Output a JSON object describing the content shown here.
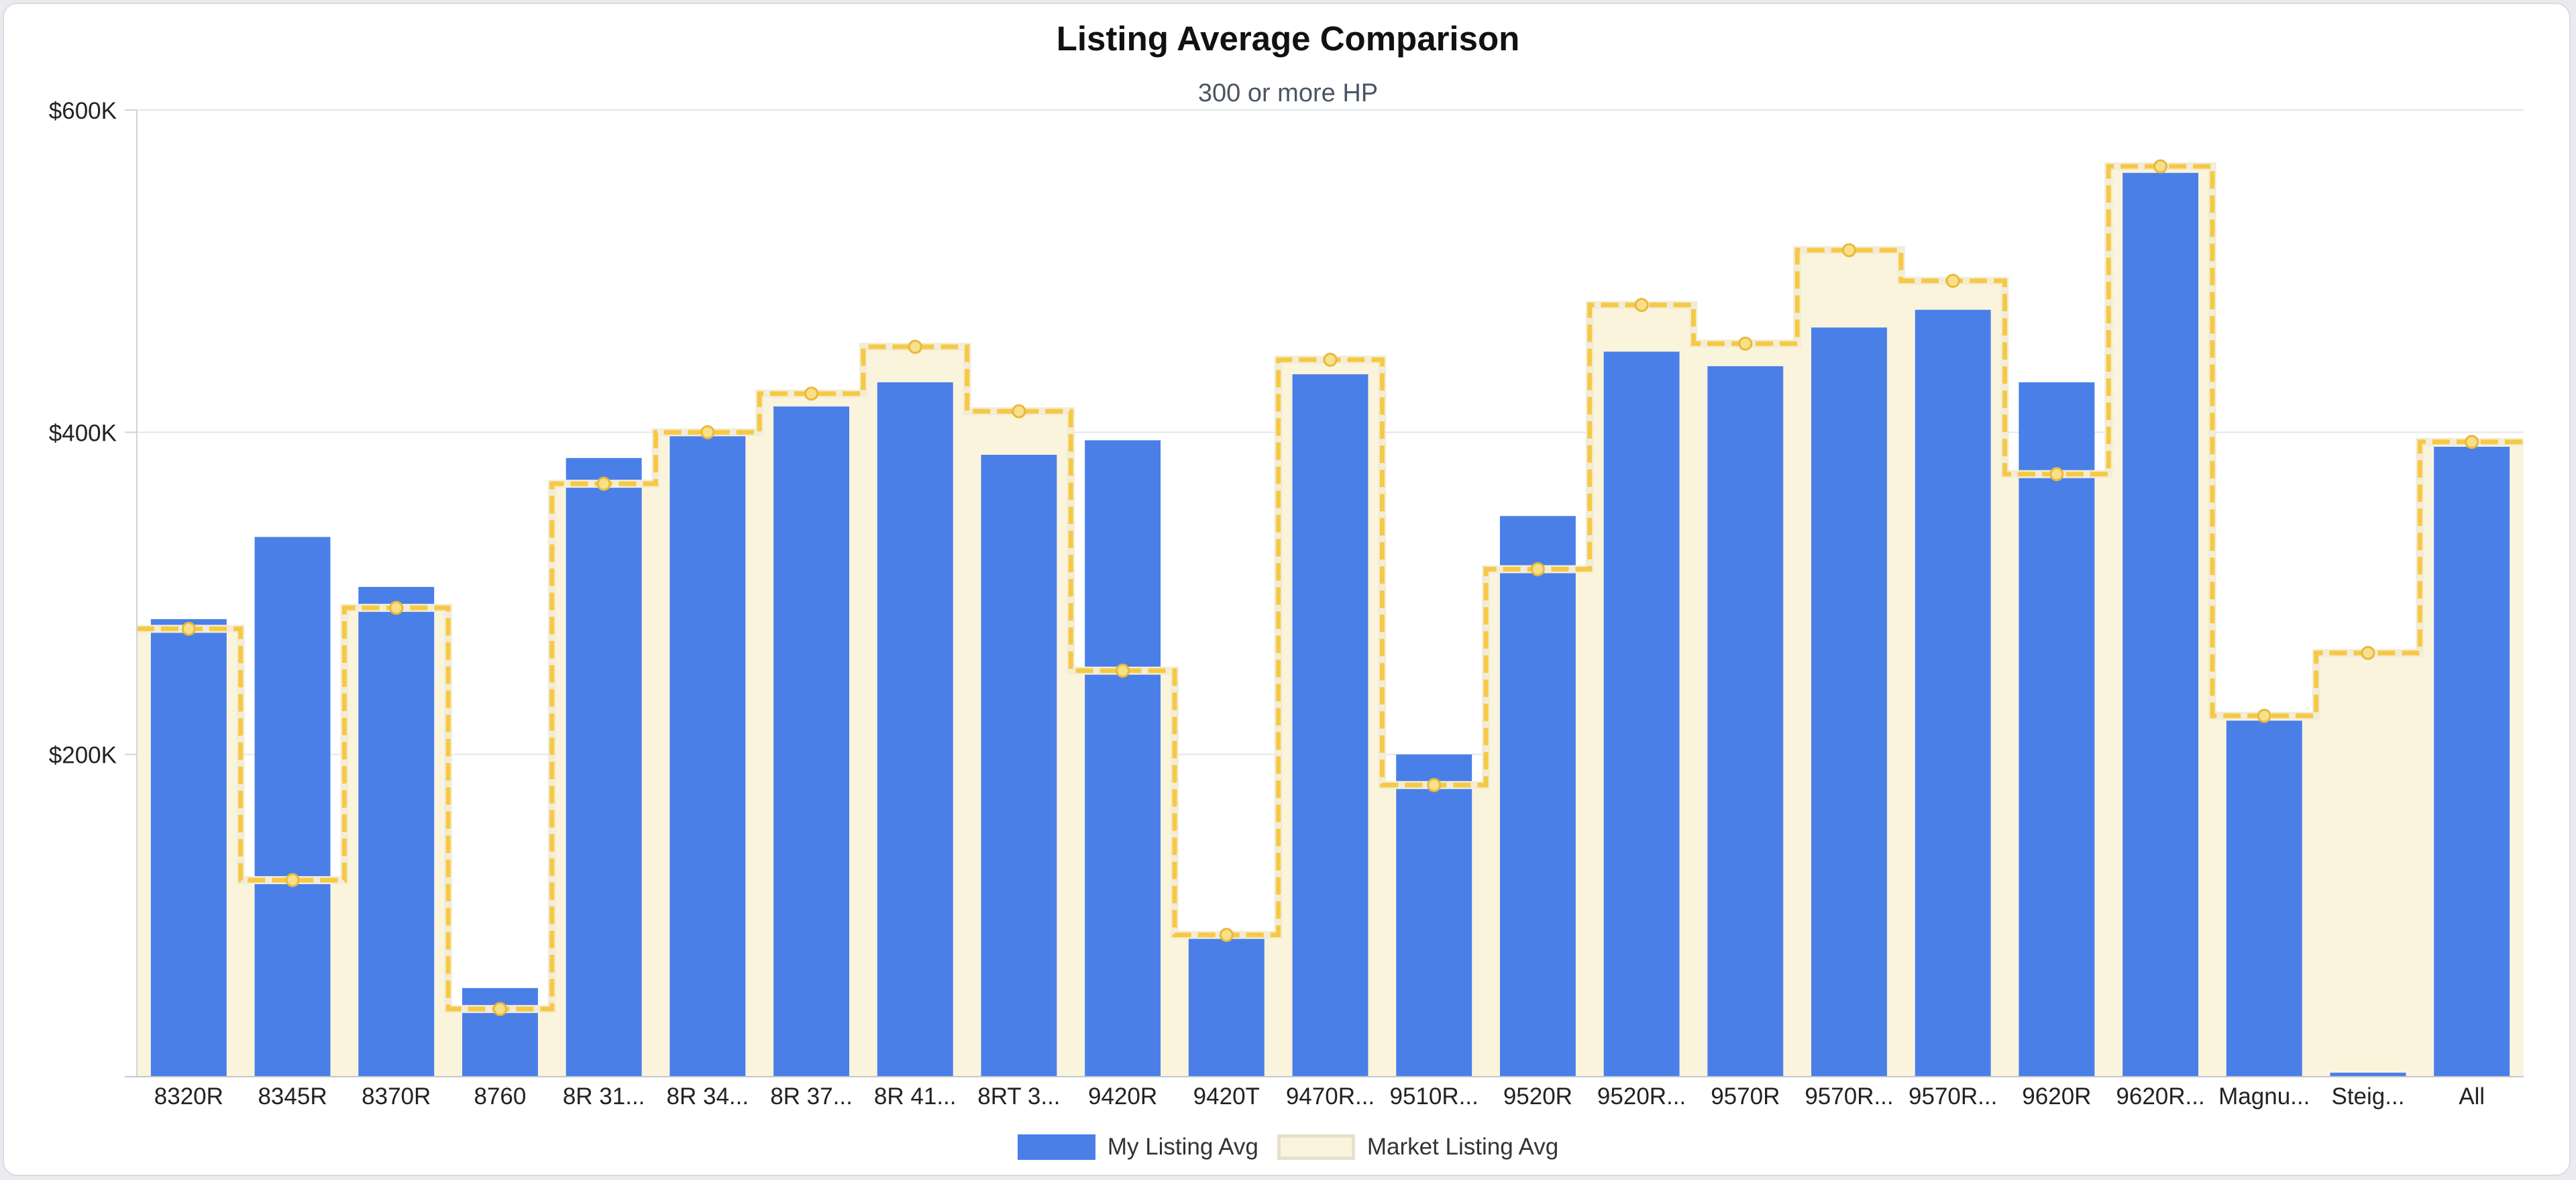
{
  "title": "Listing Average Comparison",
  "subtitle": "300 or more HP",
  "chart_data": {
    "type": "bar",
    "categories": [
      "8320R",
      "8345R",
      "8370R",
      "8760",
      "8R 31...",
      "8R 34...",
      "8R 37...",
      "8R 41...",
      "8RT 3...",
      "9420R",
      "9420T",
      "9470R...",
      "9510R...",
      "9520R",
      "9520R...",
      "9570R",
      "9570R...",
      "9570R...",
      "9620R",
      "9620R...",
      "Magnu...",
      "Steig...",
      "All"
    ],
    "series": [
      {
        "name": "My Listing Avg",
        "type": "bar",
        "color": "#4a7fe8",
        "values": [
          284000,
          335000,
          304000,
          55000,
          384000,
          400000,
          416000,
          431000,
          386000,
          395000,
          90000,
          436000,
          200000,
          348000,
          450000,
          441000,
          465000,
          476000,
          431000,
          561000,
          221000,
          2500,
          391000
        ]
      },
      {
        "name": "Market Listing Avg",
        "type": "stepped-area",
        "color": "#f6c945",
        "fill": "#fbf4dd",
        "values": [
          278000,
          122000,
          291000,
          42000,
          368000,
          400000,
          424000,
          453000,
          413000,
          252000,
          88000,
          445000,
          181000,
          315000,
          479000,
          455000,
          513000,
          494000,
          374000,
          565000,
          224000,
          263000,
          394000
        ]
      }
    ],
    "yaxis": {
      "min": 0,
      "max": 600000,
      "ticks": [
        200000,
        400000,
        600000
      ],
      "tick_labels": [
        "$200K",
        "$400K",
        "$600K"
      ]
    },
    "grid": true,
    "legend_position": "bottom"
  }
}
